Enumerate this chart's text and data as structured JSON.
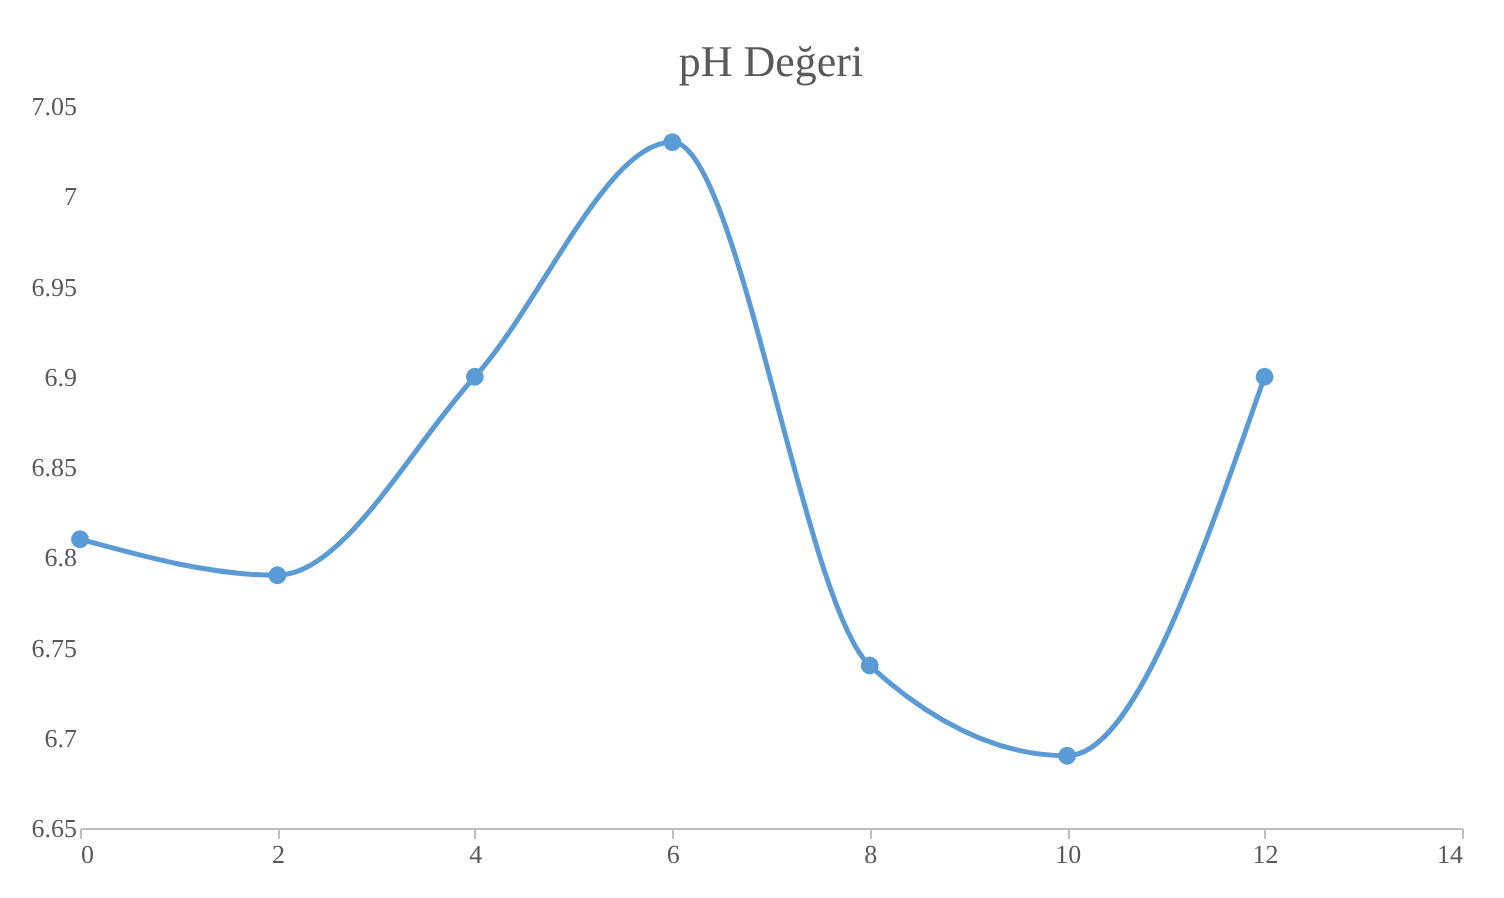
{
  "chart_data": {
    "type": "line",
    "title": "pH Değeri",
    "x": [
      0,
      2,
      4,
      6,
      8,
      10,
      12
    ],
    "series": [
      {
        "color": "#5b9bd5",
        "values": [
          6.81,
          6.79,
          6.9,
          7.03,
          6.74,
          6.69,
          6.9
        ]
      }
    ],
    "xlim": [
      0,
      14
    ],
    "xticks": [
      0,
      2,
      4,
      6,
      8,
      10,
      12,
      14
    ],
    "ylim": [
      6.65,
      7.05
    ],
    "yticks": [
      6.65,
      6.7,
      6.75,
      6.8,
      6.85,
      6.9,
      6.95,
      7,
      7.05
    ],
    "grid": false,
    "marker": "circle",
    "legend": false
  }
}
